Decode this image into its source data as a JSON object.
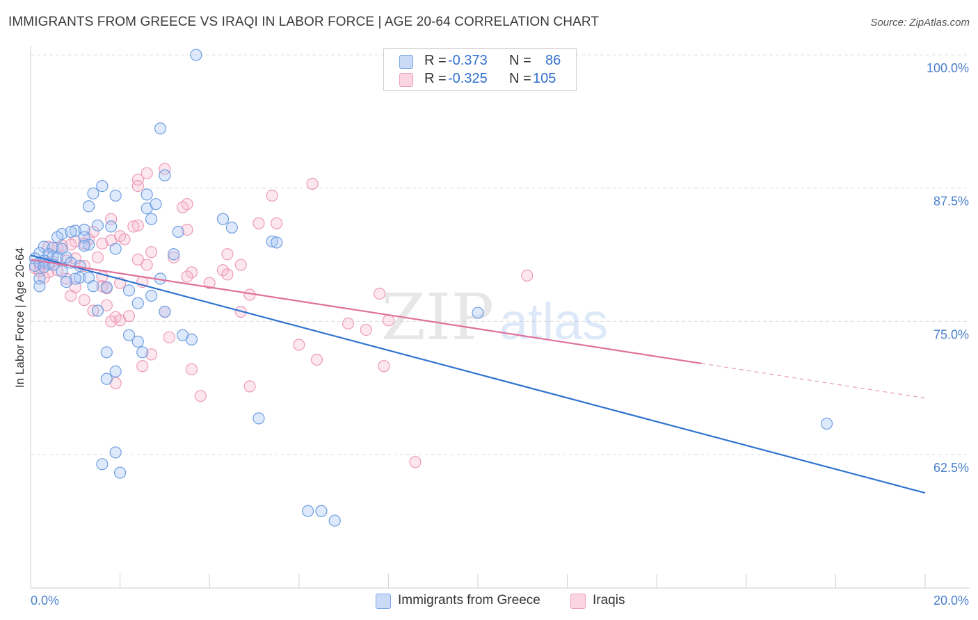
{
  "header": {
    "title": "IMMIGRANTS FROM GREECE VS IRAQI IN LABOR FORCE | AGE 20-64 CORRELATION CHART",
    "source": "Source: ZipAtlas.com"
  },
  "watermark": {
    "zip": "ZIP",
    "atlas": "atlas"
  },
  "legend": {
    "r_label": "R =",
    "n_label": "N =",
    "rows": [
      {
        "r": "-0.373",
        "n": "86",
        "color": "#7aa6e8",
        "fill": "#c9dbf7"
      },
      {
        "r": "-0.325",
        "n": "105",
        "color": "#f0a0bd",
        "fill": "#fbd5e2"
      }
    ]
  },
  "bottom_legend": [
    {
      "label": "Immigrants from Greece"
    },
    {
      "label": "Iraqis"
    }
  ],
  "colors": {
    "blue_stroke": "#6f9ee0",
    "blue_fill": "rgba(160,196,245,0.35)",
    "blue_line": "#2f74d0",
    "pink_stroke": "#ee9ab8",
    "pink_fill": "rgba(246,185,207,0.35)",
    "pink_line": "#e0709a",
    "axis_text": "#4a80cc",
    "grid": "#dcdcdc"
  },
  "chart_data": {
    "type": "scatter",
    "title": "IMMIGRANTS FROM GREECE VS IRAQI IN LABOR FORCE | AGE 20-64 CORRELATION CHART",
    "xlabel": "",
    "ylabel": "In Labor Force | Age 20-64",
    "xlim": [
      0,
      20
    ],
    "ylim": [
      50,
      101
    ],
    "x_tick_labels": [
      "0.0%",
      "20.0%"
    ],
    "y_ticks": [
      62.5,
      75.0,
      87.5,
      100.0
    ],
    "y_tick_labels": [
      "62.5%",
      "75.0%",
      "87.5%",
      "100.0%"
    ],
    "grid": true,
    "legend_position": "top-center",
    "series": [
      {
        "name": "Immigrants from Greece",
        "r": -0.373,
        "n": 86,
        "trend": {
          "x": [
            0,
            20
          ],
          "y": [
            81.2,
            58.9
          ],
          "solid_to": 20
        },
        "points": [
          [
            3.7,
            100.0
          ],
          [
            2.9,
            93.1
          ],
          [
            3.0,
            88.7
          ],
          [
            1.6,
            87.7
          ],
          [
            1.4,
            87.0
          ],
          [
            1.9,
            86.8
          ],
          [
            2.6,
            86.9
          ],
          [
            1.3,
            85.8
          ],
          [
            2.6,
            85.6
          ],
          [
            2.8,
            86.0
          ],
          [
            2.7,
            84.6
          ],
          [
            4.3,
            84.6
          ],
          [
            1.5,
            84.0
          ],
          [
            1.8,
            83.9
          ],
          [
            4.5,
            83.8
          ],
          [
            3.3,
            83.4
          ],
          [
            1.0,
            83.5
          ],
          [
            1.2,
            83.6
          ],
          [
            0.7,
            83.2
          ],
          [
            0.9,
            83.4
          ],
          [
            1.2,
            82.9
          ],
          [
            0.6,
            82.9
          ],
          [
            5.4,
            82.5
          ],
          [
            5.5,
            82.4
          ],
          [
            1.3,
            82.2
          ],
          [
            1.2,
            82.1
          ],
          [
            0.3,
            82.0
          ],
          [
            0.5,
            81.9
          ],
          [
            0.7,
            81.8
          ],
          [
            1.9,
            81.8
          ],
          [
            0.2,
            81.4
          ],
          [
            0.4,
            81.3
          ],
          [
            0.5,
            81.1
          ],
          [
            0.6,
            81.0
          ],
          [
            0.8,
            81.0
          ],
          [
            0.1,
            80.9
          ],
          [
            0.3,
            80.7
          ],
          [
            0.2,
            80.5
          ],
          [
            0.4,
            80.4
          ],
          [
            0.5,
            80.3
          ],
          [
            0.1,
            80.2
          ],
          [
            0.3,
            80.1
          ],
          [
            0.9,
            80.5
          ],
          [
            1.1,
            80.2
          ],
          [
            0.7,
            79.7
          ],
          [
            3.2,
            81.3
          ],
          [
            1.1,
            79.1
          ],
          [
            1.3,
            79.1
          ],
          [
            1.0,
            79.0
          ],
          [
            0.2,
            79.0
          ],
          [
            2.9,
            79.0
          ],
          [
            0.8,
            78.7
          ],
          [
            0.2,
            78.3
          ],
          [
            1.4,
            78.3
          ],
          [
            1.7,
            78.2
          ],
          [
            2.2,
            77.9
          ],
          [
            2.7,
            77.4
          ],
          [
            2.4,
            76.7
          ],
          [
            1.5,
            76.0
          ],
          [
            3.0,
            75.9
          ],
          [
            10.0,
            75.8
          ],
          [
            2.2,
            73.7
          ],
          [
            3.4,
            73.7
          ],
          [
            3.6,
            73.3
          ],
          [
            2.4,
            73.1
          ],
          [
            1.7,
            72.1
          ],
          [
            2.5,
            72.1
          ],
          [
            1.9,
            70.3
          ],
          [
            1.7,
            69.6
          ],
          [
            5.1,
            65.9
          ],
          [
            17.8,
            65.4
          ],
          [
            1.9,
            62.7
          ],
          [
            1.6,
            61.6
          ],
          [
            2.0,
            60.8
          ],
          [
            6.2,
            57.2
          ],
          [
            6.5,
            57.2
          ],
          [
            6.8,
            56.3
          ]
        ]
      },
      {
        "name": "Iraqis",
        "r": -0.325,
        "n": 105,
        "trend": {
          "x": [
            0,
            20
          ],
          "y": [
            80.8,
            67.8
          ],
          "solid_to": 15
        },
        "points": [
          [
            3.0,
            89.3
          ],
          [
            2.6,
            88.9
          ],
          [
            2.4,
            88.3
          ],
          [
            6.3,
            87.9
          ],
          [
            2.4,
            87.7
          ],
          [
            5.4,
            86.8
          ],
          [
            3.5,
            86.0
          ],
          [
            3.4,
            85.7
          ],
          [
            1.8,
            84.6
          ],
          [
            5.1,
            84.2
          ],
          [
            5.5,
            84.2
          ],
          [
            2.4,
            84.0
          ],
          [
            2.3,
            83.9
          ],
          [
            3.5,
            83.6
          ],
          [
            1.4,
            83.4
          ],
          [
            2.0,
            83.0
          ],
          [
            2.1,
            82.7
          ],
          [
            1.8,
            82.6
          ],
          [
            1.6,
            82.3
          ],
          [
            1.3,
            82.7
          ],
          [
            1.2,
            82.3
          ],
          [
            1.0,
            82.5
          ],
          [
            0.9,
            82.2
          ],
          [
            0.7,
            82.1
          ],
          [
            0.6,
            81.9
          ],
          [
            0.4,
            82.0
          ],
          [
            2.7,
            81.5
          ],
          [
            4.4,
            81.3
          ],
          [
            3.2,
            81.0
          ],
          [
            1.5,
            81.0
          ],
          [
            2.4,
            80.8
          ],
          [
            1.0,
            80.9
          ],
          [
            0.8,
            80.7
          ],
          [
            0.5,
            80.6
          ],
          [
            0.3,
            80.5
          ],
          [
            0.2,
            80.3
          ],
          [
            0.1,
            80.0
          ],
          [
            0.2,
            79.7
          ],
          [
            0.4,
            79.6
          ],
          [
            0.6,
            79.8
          ],
          [
            2.6,
            80.3
          ],
          [
            4.7,
            80.3
          ],
          [
            1.2,
            80.2
          ],
          [
            4.3,
            79.8
          ],
          [
            4.4,
            79.4
          ],
          [
            3.6,
            79.6
          ],
          [
            3.5,
            79.2
          ],
          [
            1.6,
            79.2
          ],
          [
            0.3,
            79.1
          ],
          [
            0.8,
            79.0
          ],
          [
            11.1,
            79.3
          ],
          [
            2.5,
            78.7
          ],
          [
            4.0,
            78.6
          ],
          [
            2.0,
            78.6
          ],
          [
            1.6,
            78.3
          ],
          [
            1.7,
            78.1
          ],
          [
            1.0,
            78.2
          ],
          [
            0.9,
            77.4
          ],
          [
            4.9,
            77.5
          ],
          [
            7.8,
            77.6
          ],
          [
            1.2,
            77.0
          ],
          [
            1.7,
            76.5
          ],
          [
            1.4,
            76.0
          ],
          [
            3.0,
            75.9
          ],
          [
            4.7,
            75.9
          ],
          [
            2.2,
            75.5
          ],
          [
            1.9,
            75.4
          ],
          [
            1.8,
            75.0
          ],
          [
            2.0,
            75.1
          ],
          [
            8.0,
            75.1
          ],
          [
            7.1,
            74.8
          ],
          [
            7.5,
            74.2
          ],
          [
            3.1,
            73.5
          ],
          [
            6.0,
            72.8
          ],
          [
            2.7,
            71.9
          ],
          [
            6.4,
            71.4
          ],
          [
            7.9,
            70.8
          ],
          [
            2.5,
            70.8
          ],
          [
            3.6,
            70.5
          ],
          [
            1.9,
            69.2
          ],
          [
            4.9,
            68.9
          ],
          [
            3.8,
            68.0
          ],
          [
            8.6,
            61.8
          ]
        ]
      }
    ]
  }
}
